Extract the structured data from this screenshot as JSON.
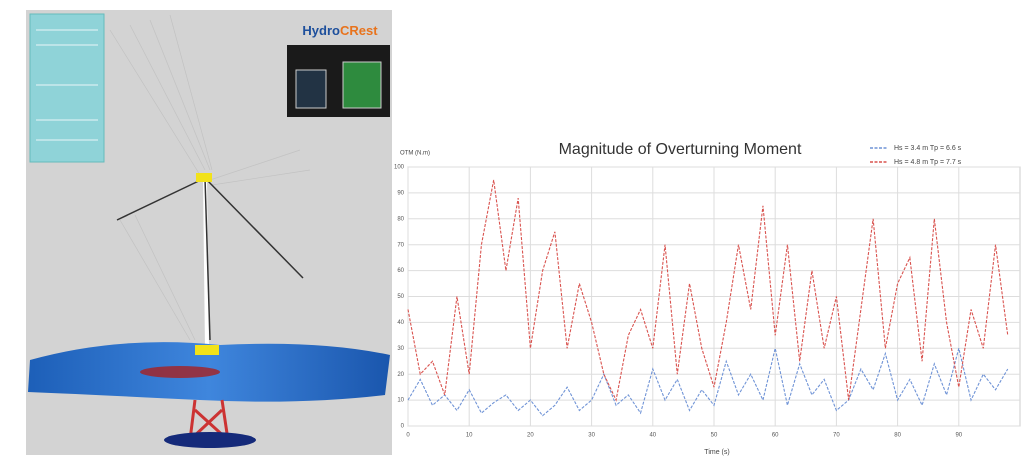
{
  "logo": {
    "part1": "Hydro",
    "part2": "CRest"
  },
  "chart_data": {
    "type": "line",
    "title": "Magnitude of Overturning Moment",
    "y_label": "OTM (N.m)",
    "x_label": "Time (s)",
    "x": [
      0,
      2,
      4,
      6,
      8,
      10,
      12,
      14,
      16,
      18,
      20,
      22,
      24,
      26,
      28,
      30,
      32,
      34,
      36,
      38,
      40,
      42,
      44,
      46,
      48,
      50,
      52,
      54,
      56,
      58,
      60,
      62,
      64,
      66,
      68,
      70,
      72,
      74,
      76,
      78,
      80,
      82,
      84,
      86,
      88,
      90,
      92,
      94,
      96,
      98
    ],
    "series": [
      {
        "name": "Hs = 3.4 m  Tp = 6.6 s",
        "color": "#6f93d6",
        "values": [
          10,
          18,
          8,
          12,
          6,
          14,
          5,
          9,
          12,
          6,
          10,
          4,
          8,
          15,
          6,
          10,
          20,
          8,
          12,
          5,
          22,
          10,
          18,
          6,
          14,
          8,
          25,
          12,
          20,
          10,
          30,
          8,
          24,
          12,
          18,
          6,
          10,
          22,
          14,
          28,
          10,
          18,
          8,
          24,
          12,
          30,
          10,
          20,
          14,
          22
        ]
      },
      {
        "name": "Hs = 4.8 m  Tp = 7.7 s",
        "color": "#d9534f",
        "values": [
          45,
          20,
          25,
          12,
          50,
          20,
          70,
          95,
          60,
          88,
          30,
          60,
          75,
          30,
          55,
          40,
          20,
          10,
          35,
          45,
          30,
          70,
          20,
          55,
          30,
          15,
          40,
          70,
          45,
          85,
          35,
          70,
          25,
          60,
          30,
          50,
          10,
          45,
          80,
          30,
          55,
          65,
          25,
          80,
          40,
          15,
          45,
          30,
          70,
          35
        ]
      }
    ],
    "xlim": [
      0,
      100
    ],
    "xticks": [
      0,
      10,
      20,
      30,
      40,
      50,
      60,
      70,
      80,
      90
    ],
    "ylim": [
      0,
      100
    ],
    "yticks": [
      0,
      10,
      20,
      30,
      40,
      50,
      60,
      70,
      80,
      90,
      100
    ],
    "grid": true,
    "legend": "top-right"
  }
}
